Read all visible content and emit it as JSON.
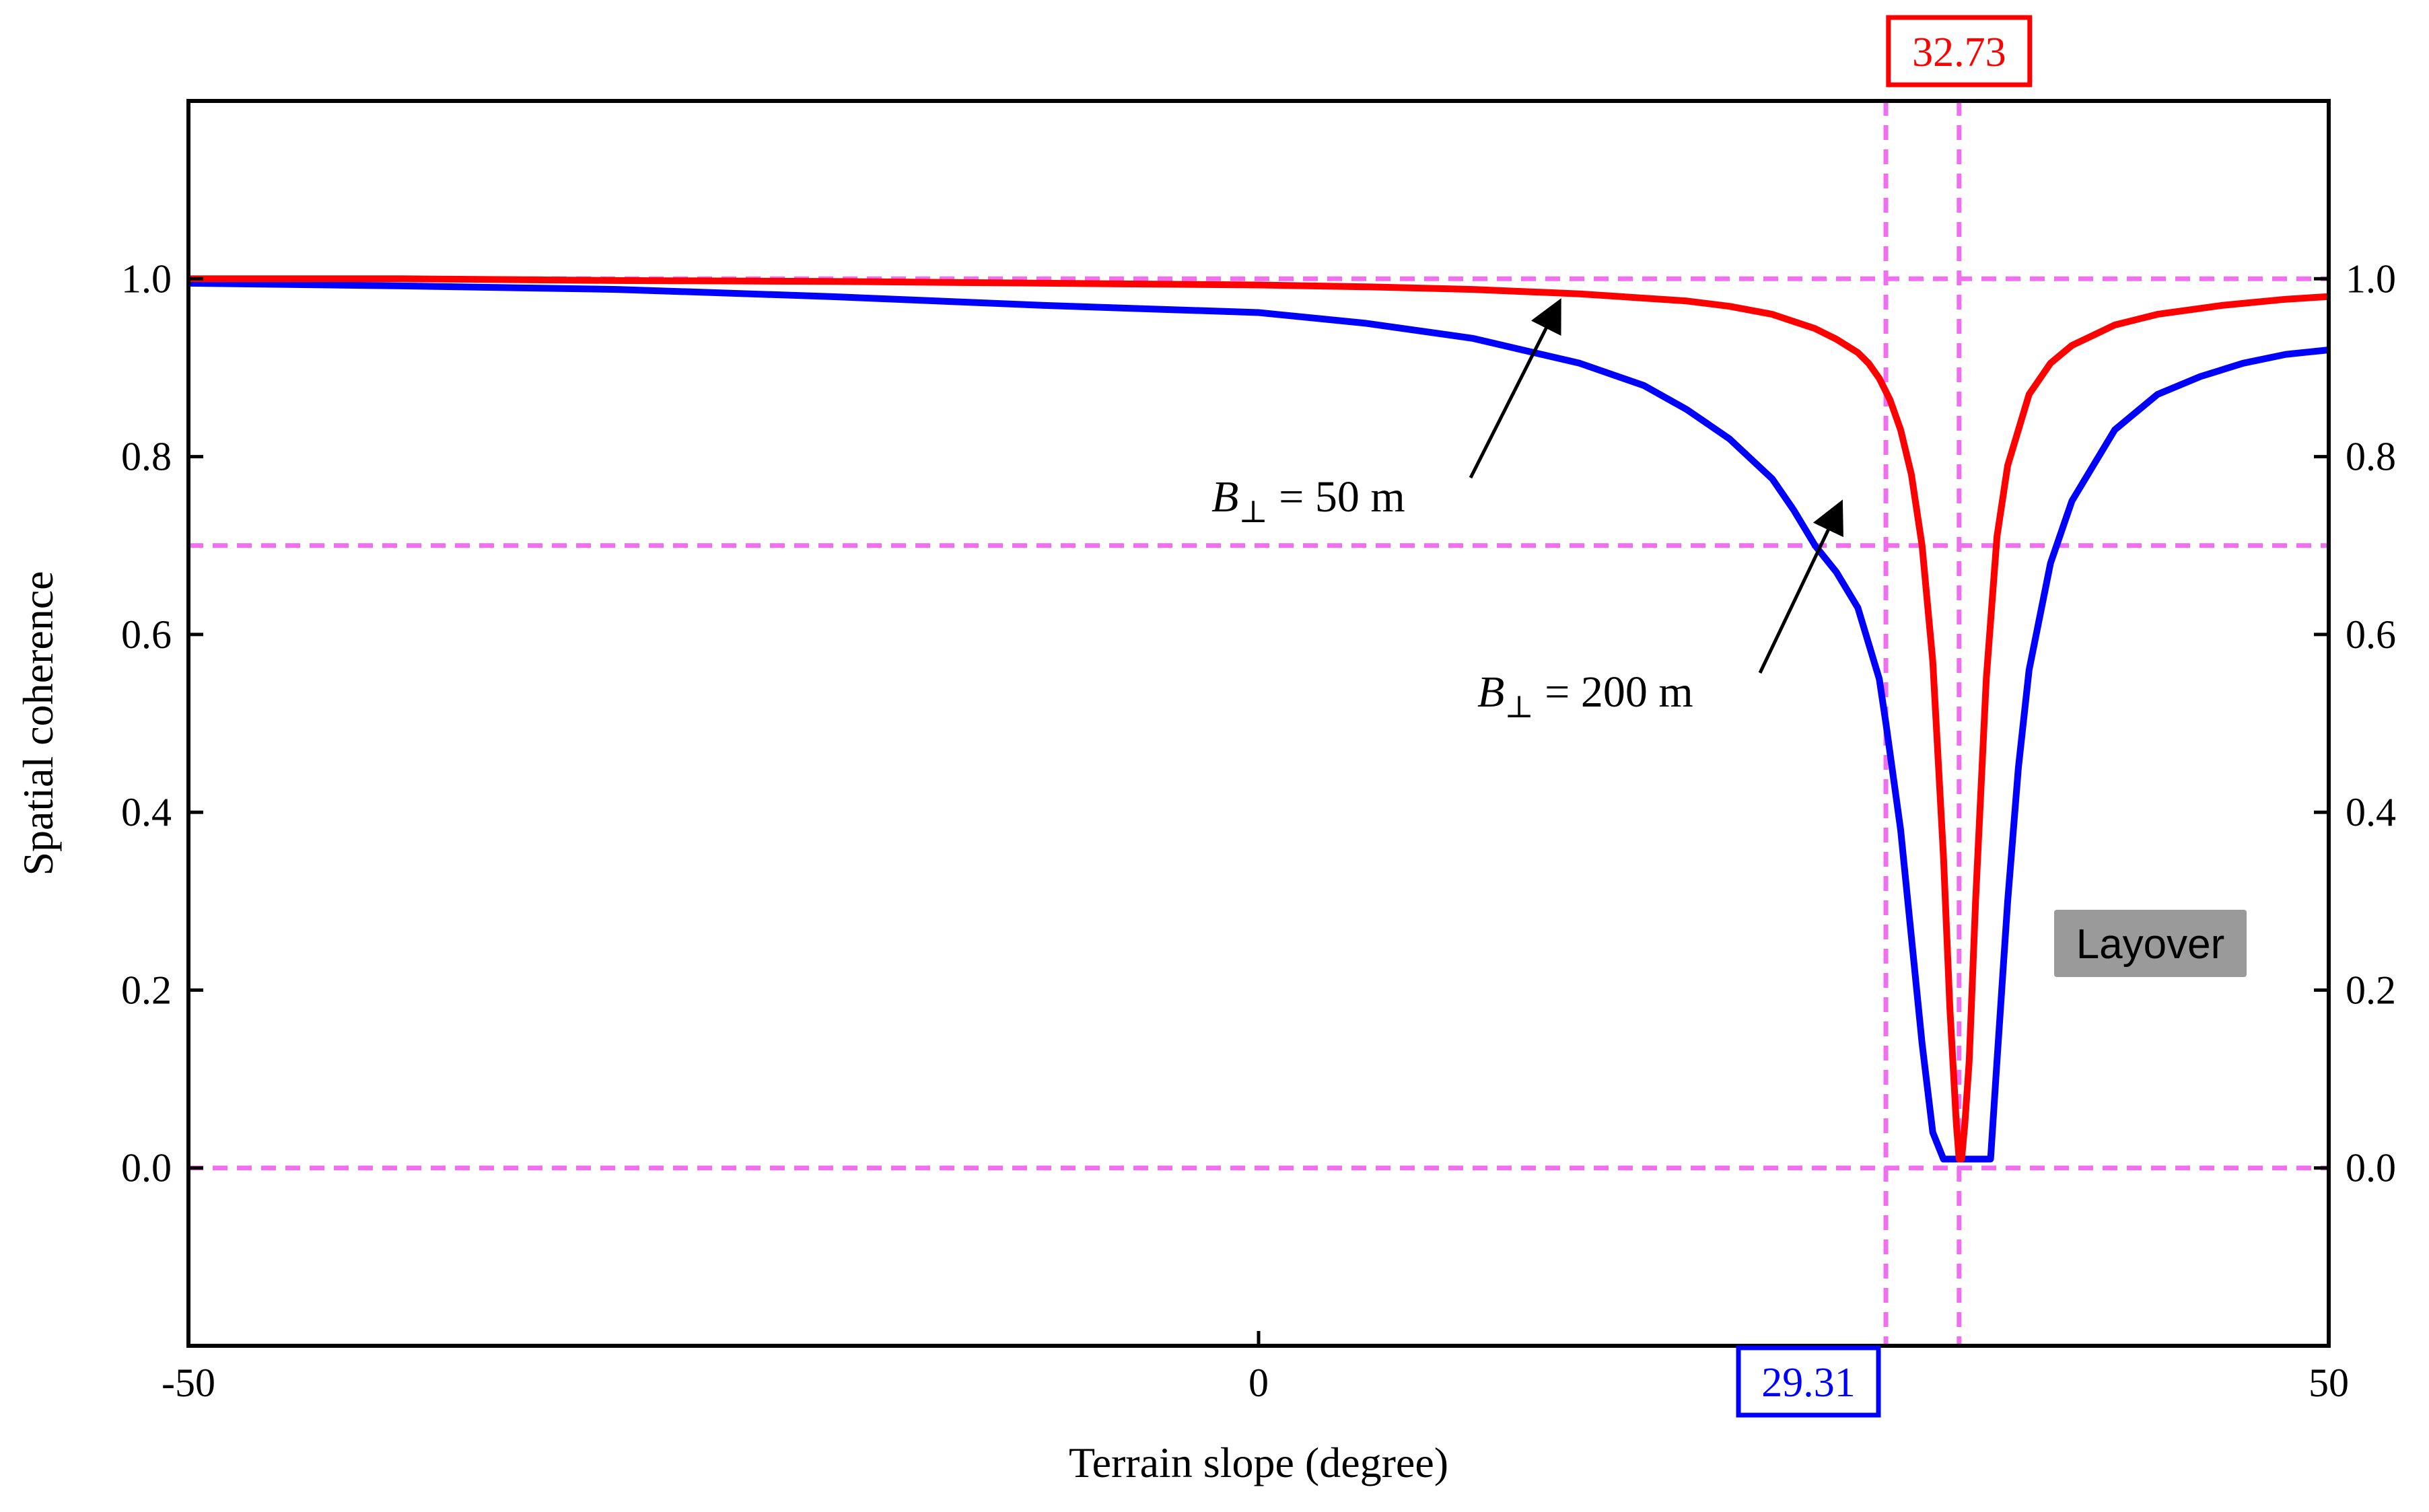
{
  "chart_data": {
    "type": "line",
    "xlabel": "Terrain slope (degree)",
    "ylabel": "Spatial coherence",
    "xlim": [
      -50,
      50
    ],
    "ylim": [
      -0.2,
      1.2
    ],
    "x_ticks": [
      -50,
      0,
      50
    ],
    "x_tick_labels": [
      "-50",
      "0",
      "50"
    ],
    "y_ticks": [
      0.0,
      0.2,
      0.4,
      0.6,
      0.8,
      1.0
    ],
    "y_tick_labels": [
      "0.0",
      "0.2",
      "0.4",
      "0.6",
      "0.8",
      "1.0"
    ],
    "right_y_axis": true,
    "grid": false,
    "series": [
      {
        "name": "B⊥ = 50 m",
        "color": "#ff0000",
        "x": [
          -50,
          -40,
          -30,
          -20,
          -10,
          0,
          5,
          10,
          15,
          20,
          22,
          24,
          25,
          26,
          27,
          28,
          28.5,
          29,
          29.5,
          30,
          30.5,
          31,
          31.5,
          32,
          32.3,
          32.6,
          32.73,
          32.85,
          33.0,
          33.2,
          33.5,
          34,
          34.5,
          35,
          36,
          37,
          38,
          40,
          42,
          45,
          48,
          50
        ],
        "y": [
          1.0,
          1.0,
          0.998,
          0.997,
          0.995,
          0.993,
          0.991,
          0.988,
          0.983,
          0.975,
          0.969,
          0.96,
          0.952,
          0.944,
          0.932,
          0.917,
          0.905,
          0.888,
          0.864,
          0.83,
          0.78,
          0.7,
          0.57,
          0.35,
          0.18,
          0.05,
          0.01,
          0.01,
          0.05,
          0.12,
          0.3,
          0.55,
          0.71,
          0.79,
          0.87,
          0.905,
          0.925,
          0.948,
          0.96,
          0.97,
          0.977,
          0.98
        ]
      },
      {
        "name": "B⊥ = 200 m",
        "color": "#0000ff",
        "x": [
          -50,
          -40,
          -30,
          -20,
          -10,
          0,
          5,
          10,
          15,
          18,
          20,
          22,
          24,
          25,
          26,
          27,
          28,
          29,
          29.31,
          30,
          30.5,
          31,
          31.5,
          32,
          32.2,
          33.5,
          34.2,
          34.5,
          35,
          35.5,
          36,
          37,
          38,
          40,
          42,
          44,
          46,
          48,
          50
        ],
        "y": [
          0.995,
          0.992,
          0.988,
          0.98,
          0.97,
          0.962,
          0.95,
          0.933,
          0.905,
          0.88,
          0.853,
          0.82,
          0.775,
          0.74,
          0.7,
          0.67,
          0.63,
          0.55,
          0.5,
          0.38,
          0.26,
          0.14,
          0.04,
          0.01,
          0.01,
          0.01,
          0.01,
          0.12,
          0.3,
          0.45,
          0.56,
          0.68,
          0.75,
          0.83,
          0.87,
          0.89,
          0.905,
          0.915,
          0.92
        ]
      }
    ],
    "reference_lines": {
      "horizontal": [
        1.0,
        0.7,
        0.0
      ],
      "vertical": [
        29.31,
        32.73
      ],
      "color": "#f06ef0",
      "style": "dashed"
    },
    "annotations": {
      "label_50": {
        "base": "B",
        "sub": "⊥",
        "rest": " = 50 m",
        "points_to": [
          14,
          0.985
        ]
      },
      "label_200": {
        "base": "B",
        "sub": "⊥",
        "rest": " = 200 m",
        "points_to": [
          27,
          0.76
        ]
      },
      "box_red": {
        "text": "32.73",
        "color": "#ff0000"
      },
      "box_blue": {
        "text": "29.31",
        "color": "#0000ff"
      },
      "layover": {
        "text": "Layover",
        "background": "#9a9a9a"
      }
    }
  }
}
